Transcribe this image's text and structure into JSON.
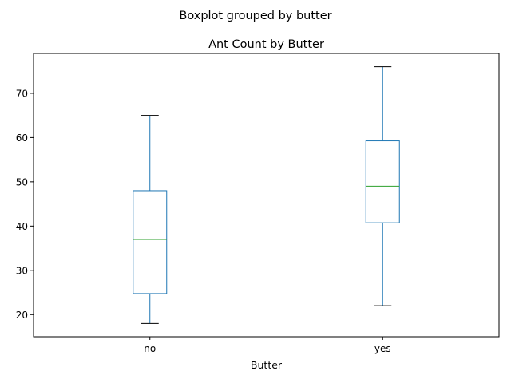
{
  "chart_data": {
    "type": "boxplot",
    "suptitle": "Boxplot grouped by butter",
    "title": "Ant Count by Butter",
    "xlabel": "Butter",
    "ylabel": "",
    "categories": [
      "no",
      "yes"
    ],
    "boxes": [
      {
        "category": "no",
        "whisker_low": 18,
        "q1": 24.75,
        "median": 37,
        "q3": 48,
        "whisker_high": 65
      },
      {
        "category": "yes",
        "whisker_low": 22,
        "q1": 40.75,
        "median": 49,
        "q3": 59.25,
        "whisker_high": 76
      }
    ],
    "ylim": [
      15,
      79
    ],
    "yticks": [
      20,
      30,
      40,
      50,
      60,
      70
    ],
    "grid": false,
    "legend": "none",
    "colors": {
      "box": "#1f77b4",
      "median": "#2ca02c",
      "whisker": "#1f77b4",
      "cap": "#000000",
      "axis": "#000000"
    }
  }
}
